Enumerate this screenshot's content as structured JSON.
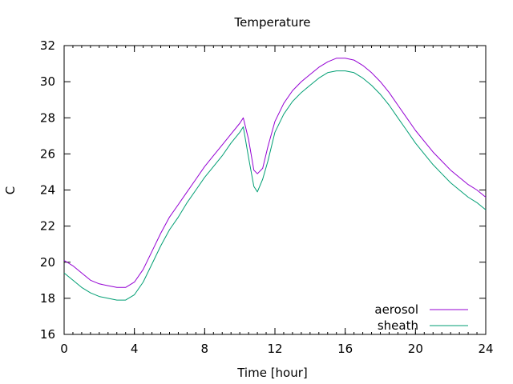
{
  "chart_data": {
    "type": "line",
    "title": "Temperature",
    "xlabel": "Time [hour]",
    "ylabel": "C",
    "xlim": [
      0,
      24
    ],
    "ylim": [
      16,
      32
    ],
    "xticks": [
      0,
      4,
      8,
      12,
      16,
      20,
      24
    ],
    "yticks": [
      16,
      18,
      20,
      22,
      24,
      26,
      28,
      30,
      32
    ],
    "grid": false,
    "legend_position": "bottom-right",
    "series": [
      {
        "name": "aerosol",
        "color": "#9400d3",
        "x": [
          0,
          0.5,
          1,
          1.5,
          2,
          2.5,
          3,
          3.5,
          4,
          4.5,
          5,
          5.5,
          6,
          6.5,
          7,
          7.5,
          8,
          8.5,
          9,
          9.5,
          10,
          10.2,
          10.5,
          10.8,
          11,
          11.3,
          11.6,
          12,
          12.5,
          13,
          13.5,
          14,
          14.5,
          15,
          15.5,
          16,
          16.5,
          17,
          17.5,
          18,
          18.5,
          19,
          19.5,
          20,
          20.5,
          21,
          21.5,
          22,
          22.5,
          23,
          23.5,
          24
        ],
        "values": [
          20.1,
          19.8,
          19.4,
          19.0,
          18.8,
          18.7,
          18.6,
          18.6,
          18.9,
          19.6,
          20.6,
          21.6,
          22.5,
          23.2,
          23.9,
          24.6,
          25.3,
          25.9,
          26.5,
          27.1,
          27.7,
          28.0,
          26.8,
          25.1,
          24.9,
          25.2,
          26.4,
          27.8,
          28.8,
          29.5,
          30.0,
          30.4,
          30.8,
          31.1,
          31.3,
          31.3,
          31.2,
          30.9,
          30.5,
          30.0,
          29.4,
          28.7,
          28.0,
          27.3,
          26.7,
          26.1,
          25.6,
          25.1,
          24.7,
          24.3,
          24.0,
          23.6
        ]
      },
      {
        "name": "sheath",
        "color": "#009e73",
        "x": [
          0,
          0.5,
          1,
          1.5,
          2,
          2.5,
          3,
          3.5,
          4,
          4.5,
          5,
          5.5,
          6,
          6.5,
          7,
          7.5,
          8,
          8.5,
          9,
          9.5,
          10,
          10.2,
          10.5,
          10.8,
          11,
          11.3,
          11.6,
          12,
          12.5,
          13,
          13.5,
          14,
          14.5,
          15,
          15.5,
          16,
          16.5,
          17,
          17.5,
          18,
          18.5,
          19,
          19.5,
          20,
          20.5,
          21,
          21.5,
          22,
          22.5,
          23,
          23.5,
          24
        ],
        "values": [
          19.4,
          19.0,
          18.6,
          18.3,
          18.1,
          18.0,
          17.9,
          17.9,
          18.2,
          18.9,
          19.9,
          20.9,
          21.8,
          22.5,
          23.3,
          24.0,
          24.7,
          25.3,
          25.9,
          26.6,
          27.2,
          27.5,
          25.8,
          24.2,
          23.9,
          24.6,
          25.6,
          27.2,
          28.2,
          28.9,
          29.4,
          29.8,
          30.2,
          30.5,
          30.6,
          30.6,
          30.5,
          30.2,
          29.8,
          29.3,
          28.7,
          28.0,
          27.3,
          26.6,
          26.0,
          25.4,
          24.9,
          24.4,
          24.0,
          23.6,
          23.3,
          22.9
        ]
      }
    ]
  }
}
